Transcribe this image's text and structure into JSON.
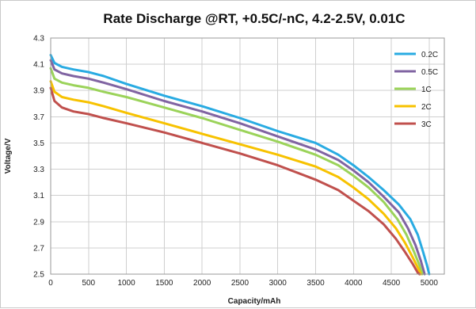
{
  "chart_data": {
    "type": "line",
    "title": "Rate Discharge @RT, +0.5C/-nC, 4.2-2.5V, 0.01C",
    "xlabel": "Capacity/mAh",
    "ylabel": "Voltage/V",
    "xlim": [
      0,
      5200
    ],
    "ylim": [
      2.5,
      4.3
    ],
    "xticks": [
      "0",
      "500",
      "1000",
      "1500",
      "2000",
      "2500",
      "3000",
      "3500",
      "4000",
      "4500",
      "5000"
    ],
    "yticks": [
      "2.5",
      "2.7",
      "2.9",
      "3.1",
      "3.3",
      "3.5",
      "3.7",
      "3.9",
      "4.1",
      "4.3"
    ],
    "grid": true,
    "legend_position": "top-right",
    "series": [
      {
        "name": "0.2C",
        "color": "#29abe2",
        "points": [
          [
            0,
            4.17
          ],
          [
            50,
            4.11
          ],
          [
            150,
            4.08
          ],
          [
            300,
            4.06
          ],
          [
            500,
            4.04
          ],
          [
            700,
            4.01
          ],
          [
            1000,
            3.95
          ],
          [
            1500,
            3.86
          ],
          [
            2000,
            3.78
          ],
          [
            2500,
            3.69
          ],
          [
            3000,
            3.59
          ],
          [
            3500,
            3.5
          ],
          [
            3800,
            3.41
          ],
          [
            4000,
            3.33
          ],
          [
            4200,
            3.24
          ],
          [
            4400,
            3.14
          ],
          [
            4600,
            3.03
          ],
          [
            4750,
            2.92
          ],
          [
            4850,
            2.8
          ],
          [
            4920,
            2.67
          ],
          [
            4970,
            2.57
          ],
          [
            5000,
            2.5
          ]
        ]
      },
      {
        "name": "0.5C",
        "color": "#8064a2",
        "points": [
          [
            0,
            4.13
          ],
          [
            50,
            4.06
          ],
          [
            150,
            4.03
          ],
          [
            300,
            4.01
          ],
          [
            500,
            3.99
          ],
          [
            700,
            3.96
          ],
          [
            1000,
            3.91
          ],
          [
            1500,
            3.82
          ],
          [
            2000,
            3.74
          ],
          [
            2500,
            3.65
          ],
          [
            3000,
            3.55
          ],
          [
            3500,
            3.45
          ],
          [
            3800,
            3.37
          ],
          [
            4000,
            3.29
          ],
          [
            4200,
            3.2
          ],
          [
            4400,
            3.09
          ],
          [
            4600,
            2.97
          ],
          [
            4720,
            2.85
          ],
          [
            4820,
            2.72
          ],
          [
            4890,
            2.6
          ],
          [
            4940,
            2.5
          ]
        ]
      },
      {
        "name": "1C",
        "color": "#9bd35a",
        "points": [
          [
            0,
            4.07
          ],
          [
            50,
            3.99
          ],
          [
            150,
            3.96
          ],
          [
            300,
            3.94
          ],
          [
            500,
            3.92
          ],
          [
            700,
            3.89
          ],
          [
            1000,
            3.85
          ],
          [
            1500,
            3.77
          ],
          [
            2000,
            3.69
          ],
          [
            2500,
            3.6
          ],
          [
            3000,
            3.51
          ],
          [
            3500,
            3.41
          ],
          [
            3800,
            3.33
          ],
          [
            4000,
            3.25
          ],
          [
            4200,
            3.16
          ],
          [
            4400,
            3.05
          ],
          [
            4580,
            2.92
          ],
          [
            4700,
            2.8
          ],
          [
            4800,
            2.67
          ],
          [
            4870,
            2.57
          ],
          [
            4910,
            2.5
          ]
        ]
      },
      {
        "name": "2C",
        "color": "#f7c200",
        "points": [
          [
            0,
            3.97
          ],
          [
            50,
            3.89
          ],
          [
            150,
            3.85
          ],
          [
            300,
            3.83
          ],
          [
            500,
            3.81
          ],
          [
            700,
            3.78
          ],
          [
            1000,
            3.73
          ],
          [
            1500,
            3.65
          ],
          [
            2000,
            3.57
          ],
          [
            2500,
            3.49
          ],
          [
            3000,
            3.41
          ],
          [
            3500,
            3.32
          ],
          [
            3800,
            3.24
          ],
          [
            4000,
            3.16
          ],
          [
            4200,
            3.07
          ],
          [
            4400,
            2.96
          ],
          [
            4560,
            2.85
          ],
          [
            4680,
            2.74
          ],
          [
            4780,
            2.63
          ],
          [
            4850,
            2.55
          ],
          [
            4890,
            2.5
          ]
        ]
      },
      {
        "name": "3C",
        "color": "#c0504d",
        "points": [
          [
            0,
            3.92
          ],
          [
            50,
            3.82
          ],
          [
            150,
            3.77
          ],
          [
            300,
            3.74
          ],
          [
            500,
            3.72
          ],
          [
            700,
            3.69
          ],
          [
            1000,
            3.65
          ],
          [
            1500,
            3.58
          ],
          [
            2000,
            3.5
          ],
          [
            2500,
            3.42
          ],
          [
            3000,
            3.33
          ],
          [
            3500,
            3.22
          ],
          [
            3800,
            3.14
          ],
          [
            4000,
            3.06
          ],
          [
            4200,
            2.98
          ],
          [
            4400,
            2.88
          ],
          [
            4560,
            2.77
          ],
          [
            4680,
            2.67
          ],
          [
            4780,
            2.58
          ],
          [
            4850,
            2.51
          ],
          [
            4870,
            2.5
          ]
        ]
      }
    ]
  }
}
